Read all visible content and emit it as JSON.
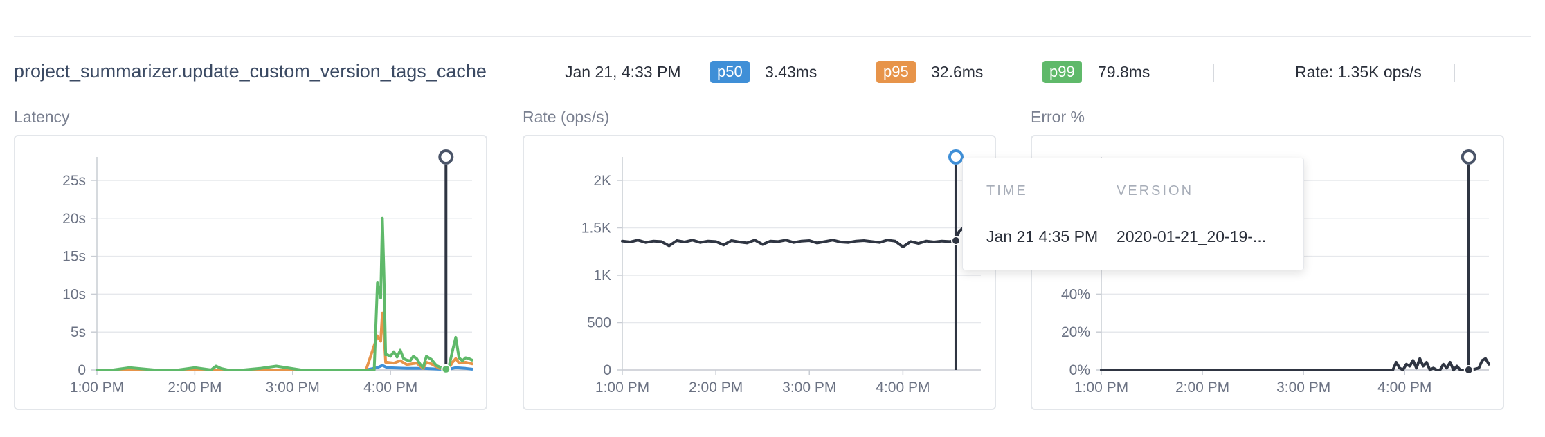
{
  "header": {
    "title": "project_summarizer.update_custom_version_tags_cache",
    "date": "Jan 21, 4:33 PM",
    "p50": {
      "label": "p50",
      "value": "3.43ms",
      "color": "#3f8fd7"
    },
    "p95": {
      "label": "p95",
      "value": "32.6ms",
      "color": "#e7944a"
    },
    "p99": {
      "label": "p99",
      "value": "79.8ms",
      "color": "#5fb96a"
    },
    "rate": "Rate: 1.35K ops/s"
  },
  "tooltip": {
    "time_header": "TIME",
    "version_header": "VERSION",
    "time_value": "Jan 21 4:35 PM",
    "version_value": "2020-01-21_20-19-..."
  },
  "chart_data": [
    {
      "type": "line",
      "title": "Latency",
      "x_ticks": [
        "1:00 PM",
        "2:00 PM",
        "3:00 PM",
        "4:00 PM"
      ],
      "y_ticks": [
        "0",
        "5s",
        "10s",
        "15s",
        "20s",
        "25s"
      ],
      "ylim": [
        0,
        25
      ],
      "xlim": [
        0,
        230
      ],
      "x_tick_positions": [
        0,
        60,
        120,
        180
      ],
      "grid": true,
      "marker_x": 214,
      "series": [
        {
          "name": "p99",
          "color": "#5fb96a",
          "x": [
            0,
            10,
            20,
            35,
            50,
            60,
            70,
            73,
            76,
            80,
            90,
            100,
            110,
            125,
            140,
            155,
            165,
            170,
            172,
            174,
            175,
            176,
            177,
            178,
            180,
            182,
            184,
            186,
            188,
            190,
            192,
            194,
            196,
            198,
            200,
            202,
            205,
            208,
            210,
            213,
            216,
            218,
            220,
            222,
            224,
            226,
            228,
            230
          ],
          "y": [
            0,
            0,
            0.3,
            0,
            0,
            0.3,
            0,
            0.5,
            0.2,
            0,
            0,
            0.2,
            0.5,
            0,
            0,
            0,
            0,
            0,
            11.5,
            9.5,
            20,
            12.5,
            2,
            2,
            1.8,
            2.4,
            1.7,
            2.6,
            1.5,
            1.3,
            1.2,
            1.8,
            1.5,
            0.8,
            0.3,
            1.8,
            1.4,
            0.6,
            0.4,
            0.1,
            0.6,
            2.5,
            4.3,
            1.6,
            1.2,
            1.6,
            1.5,
            1.3
          ]
        },
        {
          "name": "p95",
          "color": "#e7944a",
          "x": [
            0,
            60,
            100,
            165,
            172,
            174,
            175,
            176,
            177,
            178,
            182,
            186,
            190,
            196,
            200,
            202,
            205,
            210,
            216,
            218,
            220,
            222,
            226,
            230
          ],
          "y": [
            0,
            0,
            0,
            0,
            4.5,
            3.8,
            7.5,
            5,
            1,
            1,
            0.9,
            1.2,
            0.7,
            0.9,
            0.2,
            1,
            0.8,
            0.2,
            0.3,
            1,
            1.5,
            0.9,
            1,
            0.8
          ]
        },
        {
          "name": "p50",
          "color": "#3f8fd7",
          "x": [
            0,
            165,
            172,
            175,
            178,
            190,
            200,
            210,
            216,
            220,
            226,
            230
          ],
          "y": [
            0,
            0,
            0.3,
            0.6,
            0.3,
            0.2,
            0.2,
            0.1,
            0.1,
            0.3,
            0.2,
            0.1
          ]
        }
      ]
    },
    {
      "type": "line",
      "title": "Rate (ops/s)",
      "x_ticks": [
        "1:00 PM",
        "2:00 PM",
        "3:00 PM",
        "4:00 PM"
      ],
      "y_ticks": [
        "0",
        "500",
        "1K",
        "1.5K",
        "2K"
      ],
      "ylim": [
        0,
        2000
      ],
      "xlim": [
        0,
        230
      ],
      "x_tick_positions": [
        0,
        60,
        120,
        180
      ],
      "grid": true,
      "marker_x": 214,
      "series": [
        {
          "name": "rate",
          "color": "#2f3542",
          "x": [
            0,
            5,
            10,
            15,
            20,
            25,
            30,
            35,
            40,
            45,
            50,
            55,
            60,
            65,
            70,
            75,
            80,
            85,
            90,
            95,
            100,
            105,
            110,
            115,
            120,
            125,
            130,
            135,
            140,
            145,
            150,
            155,
            160,
            165,
            170,
            175,
            180,
            185,
            190,
            195,
            200,
            205,
            210,
            214,
            216,
            218,
            220
          ],
          "y": [
            1360,
            1350,
            1370,
            1345,
            1360,
            1355,
            1310,
            1365,
            1350,
            1370,
            1345,
            1360,
            1355,
            1320,
            1365,
            1350,
            1340,
            1370,
            1325,
            1360,
            1355,
            1370,
            1345,
            1360,
            1365,
            1340,
            1355,
            1370,
            1350,
            1345,
            1360,
            1365,
            1355,
            1345,
            1370,
            1360,
            1300,
            1355,
            1335,
            1360,
            1350,
            1360,
            1355,
            1365,
            1460,
            1490,
            1500
          ]
        }
      ]
    },
    {
      "type": "line",
      "title": "Error %",
      "x_ticks": [
        "1:00 PM",
        "2:00 PM",
        "3:00 PM",
        "4:00 PM"
      ],
      "y_ticks": [
        "0%",
        "20%",
        "40%"
      ],
      "ylim": [
        0,
        100
      ],
      "xlim": [
        0,
        230
      ],
      "x_tick_positions": [
        0,
        60,
        120,
        180
      ],
      "grid": true,
      "marker_x": 218,
      "series": [
        {
          "name": "error",
          "color": "#2f3542",
          "x": [
            0,
            60,
            120,
            170,
            173,
            175,
            177,
            179,
            181,
            183,
            185,
            187,
            189,
            191,
            193,
            195,
            197,
            199,
            201,
            203,
            205,
            207,
            209,
            211,
            213,
            215,
            218,
            220,
            222,
            224,
            226,
            228,
            230
          ],
          "y": [
            0,
            0,
            0,
            0,
            0,
            4,
            1,
            0,
            3,
            2,
            5,
            1,
            6,
            2,
            4,
            0,
            1,
            0,
            0,
            3,
            1,
            4,
            0,
            2,
            0,
            0,
            0,
            0,
            0.5,
            1,
            5,
            6,
            3
          ]
        }
      ]
    }
  ]
}
